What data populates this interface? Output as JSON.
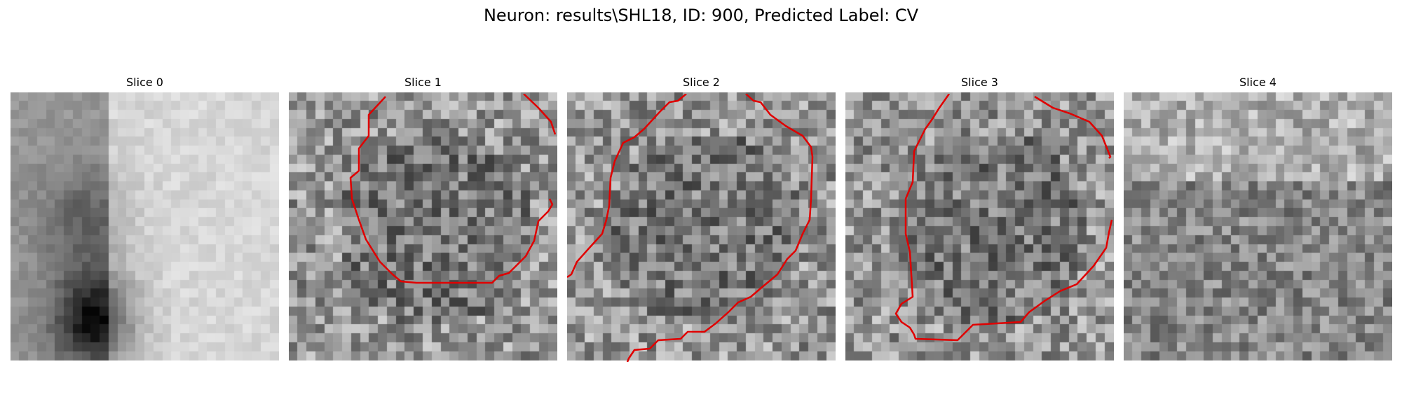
{
  "figure": {
    "title": "Neuron: results\\SHL18, ID: 900, Predicted Label: CV"
  },
  "panels": [
    {
      "title": "Slice 0"
    },
    {
      "title": "Slice 1"
    },
    {
      "title": "Slice 2"
    },
    {
      "title": "Slice 3"
    },
    {
      "title": "Slice 4"
    }
  ],
  "colors": {
    "contour": "#e00000",
    "background": "#ffffff"
  }
}
